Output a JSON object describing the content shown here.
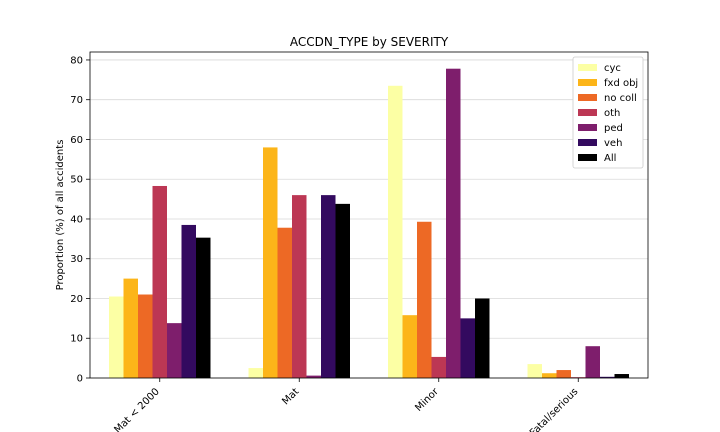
{
  "chart_data": {
    "type": "bar",
    "title": "ACCDN_TYPE by SEVERITY",
    "xlabel": "",
    "ylabel": "Proportion (%) of all accidents",
    "ylim": [
      0,
      82
    ],
    "yticks": [
      0,
      10,
      20,
      30,
      40,
      50,
      60,
      70,
      80
    ],
    "grid": true,
    "legend_position": "top-right",
    "categories": [
      "Mat < 2000",
      "Mat",
      "Minor",
      "Fatal/serious"
    ],
    "series": [
      {
        "name": "cyc",
        "color": "#fcffa4",
        "values": [
          20.5,
          2.5,
          73.5,
          3.5
        ]
      },
      {
        "name": "fxd obj",
        "color": "#fcb519",
        "values": [
          25.0,
          58.0,
          15.8,
          1.2
        ]
      },
      {
        "name": "no coll",
        "color": "#ed6925",
        "values": [
          21.0,
          37.8,
          39.3,
          2.0
        ]
      },
      {
        "name": "oth",
        "color": "#bc3754",
        "values": [
          48.3,
          46.0,
          5.3,
          0.2
        ]
      },
      {
        "name": "ped",
        "color": "#7e1e6c",
        "values": [
          13.8,
          0.6,
          77.8,
          8.0
        ]
      },
      {
        "name": "veh",
        "color": "#330a5f",
        "values": [
          38.5,
          46.0,
          15.0,
          0.3
        ]
      },
      {
        "name": "All",
        "color": "#000000",
        "values": [
          35.3,
          43.8,
          20.0,
          1.0
        ]
      }
    ]
  }
}
